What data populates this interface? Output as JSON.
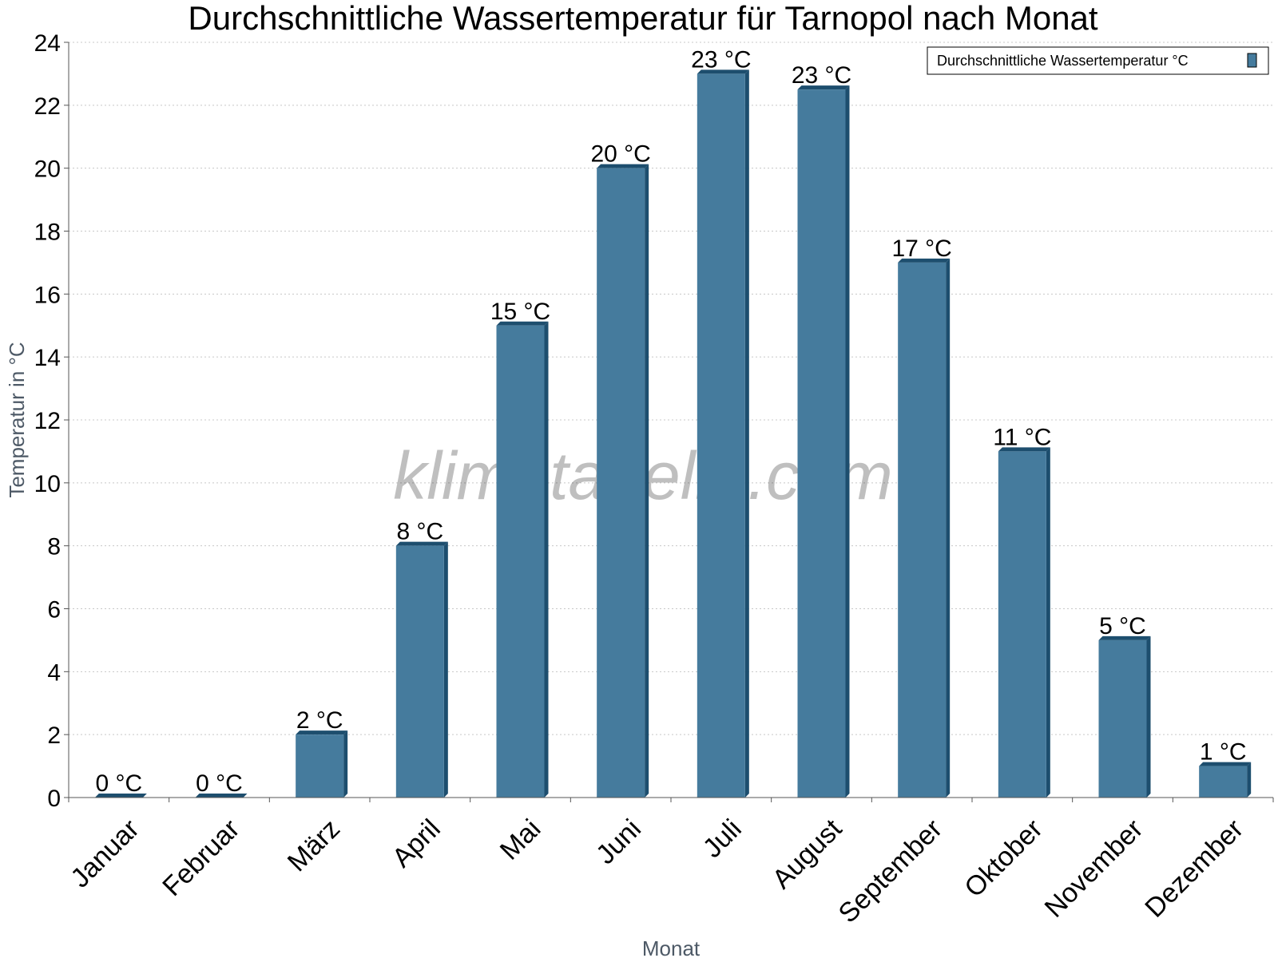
{
  "chart_data": {
    "type": "bar",
    "title": "Durchschnittliche Wassertemperatur für Tarnopol nach Monat",
    "xlabel": "Monat",
    "ylabel": "Temperatur in °C",
    "categories": [
      "Januar",
      "Februar",
      "März",
      "April",
      "Mai",
      "Juni",
      "Juli",
      "August",
      "September",
      "Oktober",
      "November",
      "Dezember"
    ],
    "series": [
      {
        "name": "Durchschnittliche Wassertemperatur °C",
        "values": [
          0,
          0,
          2,
          8,
          15,
          20,
          23,
          22.5,
          17,
          11,
          5,
          1
        ],
        "labels": [
          "0 °C",
          "0 °C",
          "2 °C",
          "8 °C",
          "15 °C",
          "20 °C",
          "23 °C",
          "23 °C",
          "17 °C",
          "11 °C",
          "5 °C",
          "1 °C"
        ]
      }
    ],
    "ylim": [
      0,
      24
    ],
    "yticks": [
      0,
      2,
      4,
      6,
      8,
      10,
      12,
      14,
      16,
      18,
      20,
      22,
      24
    ],
    "grid": true,
    "legend_position": "top-right",
    "colors": {
      "bar_front": "#457b9d",
      "bar_side": "#1d4e6e",
      "bar_top": "#1d4e6e"
    }
  },
  "watermark": "klimatabelle.com"
}
